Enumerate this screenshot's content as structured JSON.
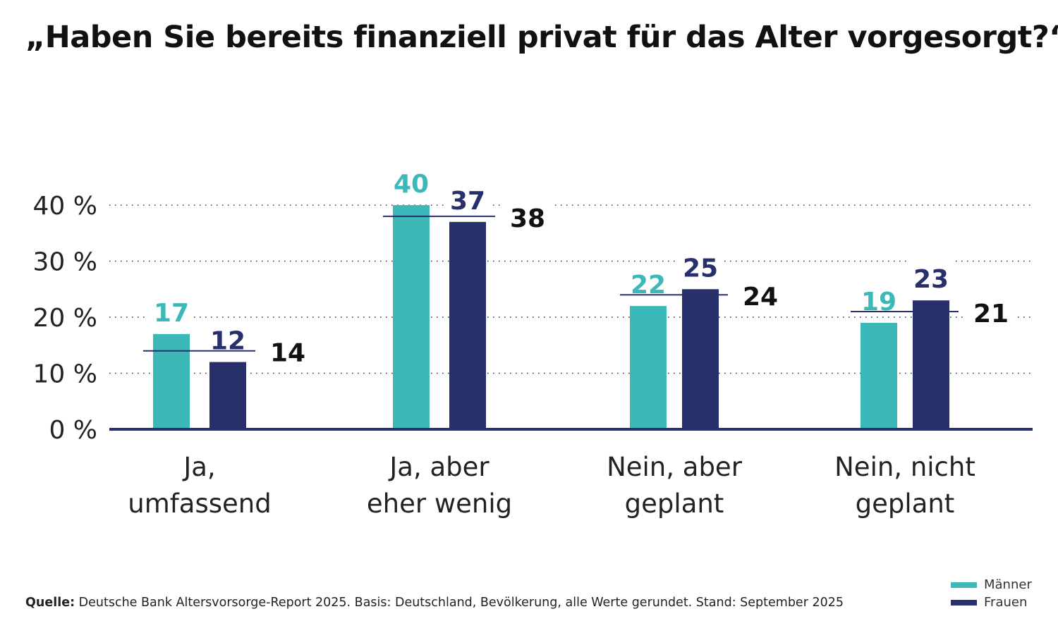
{
  "chart_data": {
    "type": "bar",
    "title": "„Haben Sie bereits finanziell privat für das Alter vorgesorgt?“",
    "categories": [
      [
        "Ja,",
        "umfassend"
      ],
      [
        "Ja, aber",
        "eher wenig"
      ],
      [
        "Nein, aber",
        "geplant"
      ],
      [
        "Nein, nicht",
        "geplant"
      ]
    ],
    "series": [
      {
        "name": "Männer",
        "color": "#3db8b8",
        "values": [
          17,
          40,
          22,
          19
        ]
      },
      {
        "name": "Frauen",
        "color": "#28306c",
        "values": [
          12,
          37,
          25,
          23
        ]
      }
    ],
    "totals": [
      14,
      38,
      24,
      21
    ],
    "yticks": [
      "0 %",
      "10 %",
      "20 %",
      "30 %",
      "40 %"
    ],
    "ylim": [
      0,
      40
    ],
    "grid": "dotted horizontal",
    "legend": "bottom-right"
  },
  "source": {
    "label": "Quelle:",
    "text": " Deutsche Bank Altersvorsorge-Report 2025. Basis: Deutschland, Bevölkerung, alle Werte gerundet. Stand: September 2025"
  }
}
